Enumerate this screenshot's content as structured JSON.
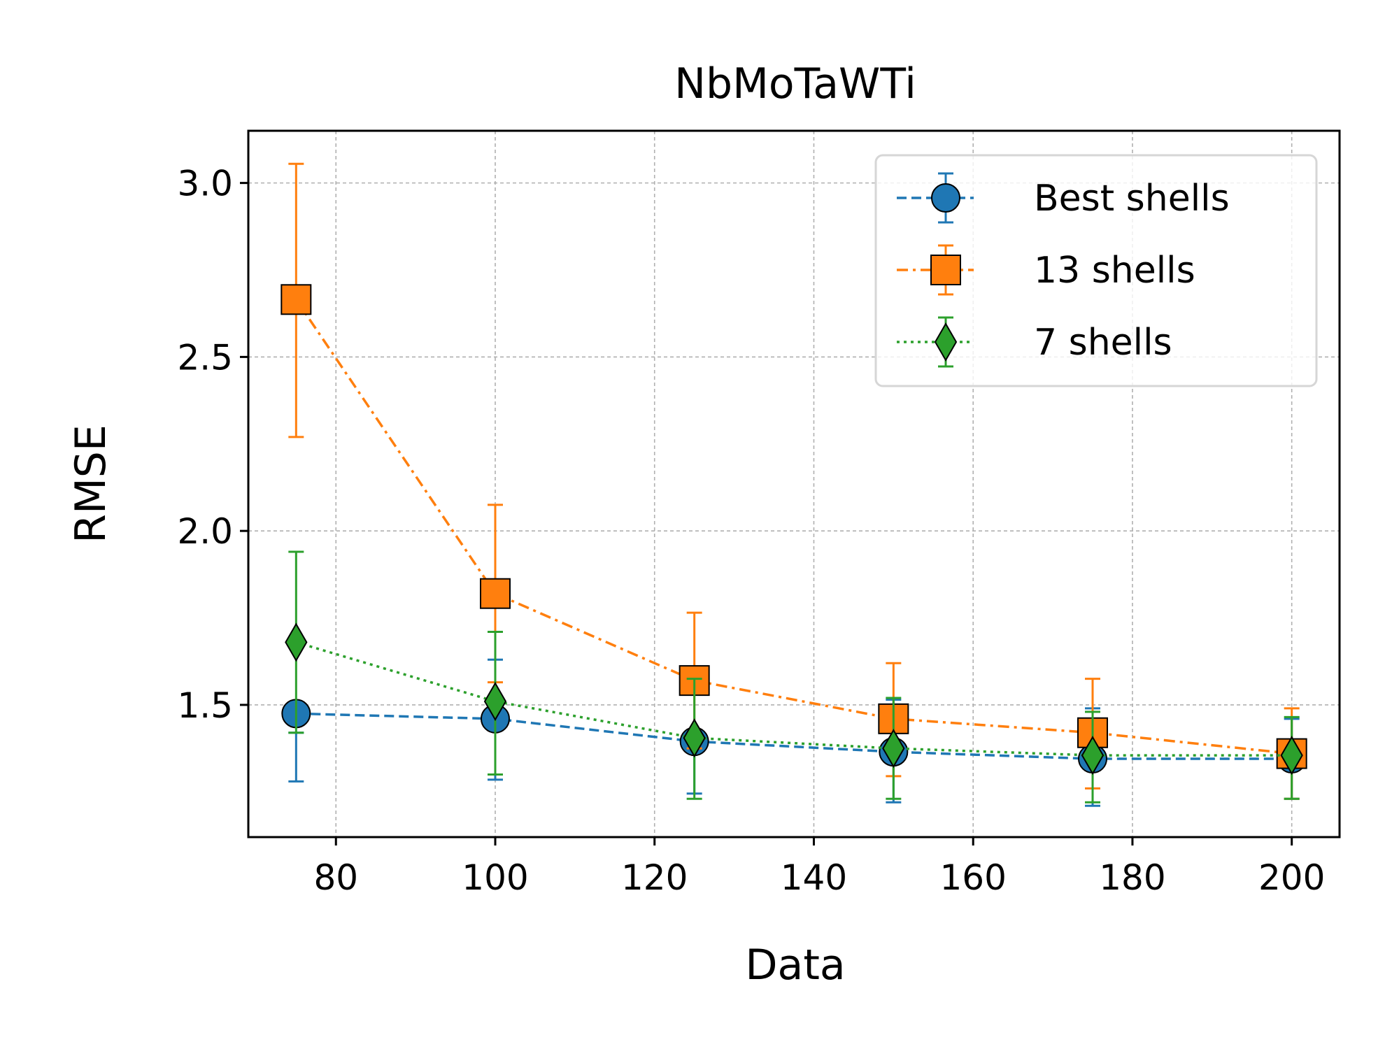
{
  "chart_data": {
    "type": "line",
    "title": "NbMoTaWTi",
    "xlabel": "Data",
    "ylabel": "RMSE",
    "xlim": [
      69,
      206
    ],
    "ylim": [
      1.12,
      3.15
    ],
    "xticks": [
      80,
      100,
      120,
      140,
      160,
      180,
      200
    ],
    "yticks": [
      1.5,
      2.0,
      2.5,
      3.0
    ],
    "xtick_labels": [
      "80",
      "100",
      "120",
      "140",
      "160",
      "180",
      "200"
    ],
    "ytick_labels": [
      "1.5",
      "2.0",
      "2.5",
      "3.0"
    ],
    "grid": true,
    "legend_position": "top-right",
    "x": [
      75,
      100,
      125,
      150,
      175,
      200
    ],
    "series": [
      {
        "name": "Best shells",
        "color": "#1f77b4",
        "marker": "circle",
        "linestyle": "dashed",
        "values": [
          1.475,
          1.46,
          1.395,
          1.365,
          1.345,
          1.345
        ],
        "err_low": [
          1.28,
          1.285,
          1.245,
          1.22,
          1.21,
          1.23
        ],
        "err_high": [
          1.42,
          1.63,
          1.4,
          1.515,
          1.49,
          1.46
        ]
      },
      {
        "name": "13 shells",
        "color": "#ff7f0e",
        "marker": "square",
        "linestyle": "dashdot",
        "values": [
          2.665,
          1.82,
          1.57,
          1.46,
          1.42,
          1.36
        ],
        "err_low": [
          2.27,
          1.565,
          1.375,
          1.295,
          1.26,
          1.23
        ],
        "err_high": [
          3.055,
          2.075,
          1.765,
          1.62,
          1.575,
          1.49
        ]
      },
      {
        "name": "7 shells",
        "color": "#2ca02c",
        "marker": "diamond",
        "linestyle": "dotted",
        "values": [
          1.68,
          1.51,
          1.405,
          1.375,
          1.355,
          1.355
        ],
        "err_low": [
          1.42,
          1.3,
          1.23,
          1.23,
          1.22,
          1.23
        ],
        "err_high": [
          1.94,
          1.71,
          1.575,
          1.52,
          1.48,
          1.465
        ]
      }
    ]
  }
}
